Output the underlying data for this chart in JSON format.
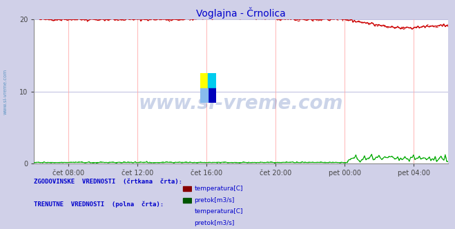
{
  "title": "Voglajna - Črnolica",
  "title_color": "#0000cc",
  "bg_color": "#d0d0e8",
  "plot_bg_color": "#ffffff",
  "grid_major_color": "#bbbbdd",
  "grid_minor_color": "#ffcccc",
  "watermark_text": "www.si-vreme.com",
  "watermark_color": "#3355aa",
  "watermark_alpha": 0.25,
  "x_tick_labels": [
    "čet 08:00",
    "čet 12:00",
    "čet 16:00",
    "čet 20:00",
    "pet 00:00",
    "pet 04:00"
  ],
  "x_tick_positions": [
    0.083,
    0.25,
    0.417,
    0.583,
    0.75,
    0.917
  ],
  "ylim": [
    0,
    20
  ],
  "yticks": [
    0,
    10,
    20
  ],
  "n_points": 288,
  "temp_color": "#cc0000",
  "flow_color": "#00aa00",
  "left_label": "www.si-vreme.com",
  "left_label_color": "#4488bb",
  "legend_text_color": "#0000cc",
  "legend_label1": "ZGODOVINSKE  VREDNOSTI  (Črtkana  črta):",
  "legend_label2": "TRENUTNE  VREDNOSTI  (polna  črta):",
  "legend_item1a": "temperatura[C]",
  "legend_item1b": "pretok[m3/s]",
  "legend_item2a": "temperatura[C]",
  "legend_item2b": "pretok[m3/s]"
}
